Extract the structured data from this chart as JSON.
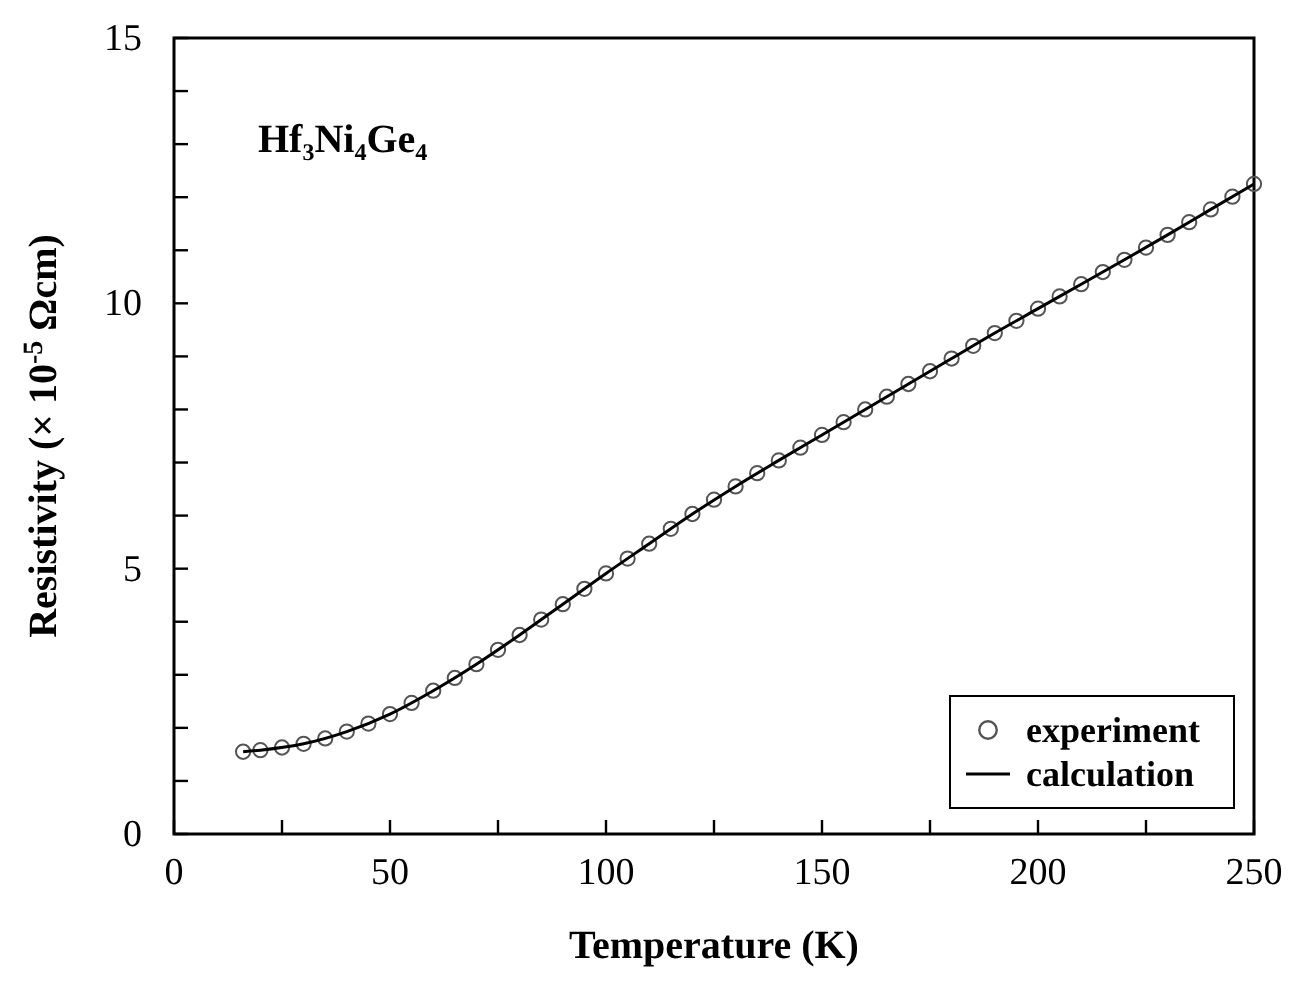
{
  "chart_data": {
    "type": "scatter",
    "xlabel": "Temperature (K)",
    "ylabel": "Resistivity (× 10$^{-5}$ Ωcm)",
    "annotations": [
      "Hf₃Ni₄Ge₄"
    ],
    "xlim": [
      0,
      250
    ],
    "ylim": [
      0,
      15
    ],
    "xticks": [
      0,
      {
        "value": 25,
        "label": null
      },
      50,
      {
        "value": 75,
        "label": null
      },
      100,
      {
        "value": 125,
        "label": null
      },
      150,
      {
        "value": 175,
        "label": null
      },
      200,
      {
        "value": 225,
        "label": null
      },
      250
    ],
    "yticks": [
      0,
      {
        "value": 1,
        "label": null
      },
      {
        "value": 2,
        "label": null
      },
      {
        "value": 3,
        "label": null
      },
      {
        "value": 4,
        "label": null
      },
      5,
      {
        "value": 6,
        "label": null
      },
      {
        "value": 7,
        "label": null
      },
      {
        "value": 8,
        "label": null
      },
      {
        "value": 9,
        "label": null
      },
      10,
      {
        "value": 11,
        "label": null
      },
      {
        "value": 12,
        "label": null
      },
      {
        "value": 13,
        "label": null
      },
      {
        "value": 14,
        "label": null
      },
      15
    ],
    "grid": false,
    "legend": "bottom right",
    "series": [
      {
        "name": "experiment",
        "type": "scatter",
        "marker": "circle",
        "color": "#555555",
        "x": [
          16,
          20,
          25,
          30,
          35,
          40,
          45,
          50,
          55,
          60,
          65,
          70,
          75,
          80,
          85,
          90,
          95,
          100,
          105,
          110,
          115,
          120,
          125,
          130,
          135,
          140,
          145,
          150,
          155,
          160,
          165,
          170,
          175,
          180,
          185,
          190,
          195,
          200,
          205,
          210,
          215,
          220,
          225,
          230,
          235,
          240,
          245,
          250
        ],
        "values": [
          1.55,
          1.58,
          1.63,
          1.7,
          1.8,
          1.93,
          2.08,
          2.26,
          2.47,
          2.7,
          2.94,
          3.2,
          3.47,
          3.75,
          4.04,
          4.33,
          4.62,
          4.91,
          5.19,
          5.47,
          5.75,
          6.03,
          6.3,
          6.55,
          6.8,
          7.04,
          7.28,
          7.52,
          7.76,
          8.0,
          8.24,
          8.48,
          8.72,
          8.96,
          9.2,
          9.44,
          9.67,
          9.9,
          10.13,
          10.36,
          10.59,
          10.82,
          11.05,
          11.29,
          11.53,
          11.77,
          12.01,
          12.25
        ]
      },
      {
        "name": "calculation",
        "type": "line",
        "marker": "none",
        "line_style": "solid",
        "color": "#000000",
        "x": [
          16,
          20,
          30,
          40,
          50,
          60,
          70,
          80,
          90,
          100,
          110,
          120,
          130,
          140,
          150,
          160,
          170,
          180,
          190,
          200,
          210,
          220,
          230,
          240,
          250
        ],
        "values": [
          1.55,
          1.58,
          1.7,
          1.93,
          2.26,
          2.7,
          3.2,
          3.75,
          4.33,
          4.91,
          5.47,
          6.03,
          6.55,
          7.04,
          7.52,
          8.0,
          8.48,
          8.96,
          9.44,
          9.9,
          10.36,
          10.82,
          11.29,
          11.77,
          12.25
        ]
      }
    ]
  }
}
